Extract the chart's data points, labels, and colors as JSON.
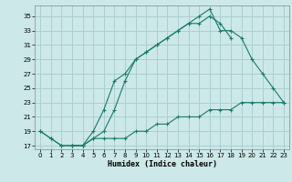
{
  "xlabel": "Humidex (Indice chaleur)",
  "bg_color": "#cce8e8",
  "grid_color": "#aacfcf",
  "line_color": "#1a7a6a",
  "xlim": [
    -0.5,
    23.5
  ],
  "ylim": [
    16.5,
    36.5
  ],
  "xticks": [
    0,
    1,
    2,
    3,
    4,
    5,
    6,
    7,
    8,
    9,
    10,
    11,
    12,
    13,
    14,
    15,
    16,
    17,
    18,
    19,
    20,
    21,
    22,
    23
  ],
  "yticks": [
    17,
    19,
    21,
    23,
    25,
    27,
    29,
    31,
    33,
    35
  ],
  "line1_x": [
    0,
    1,
    2,
    3,
    4,
    5,
    6,
    7,
    8,
    9,
    10,
    11,
    12,
    13,
    14,
    15,
    16,
    17,
    18
  ],
  "line1_y": [
    19,
    18,
    17,
    17,
    17,
    19,
    22,
    26,
    27,
    29,
    30,
    31,
    32,
    33,
    34,
    34,
    35,
    34,
    32
  ],
  "line2_x": [
    0,
    1,
    2,
    3,
    4,
    5,
    6,
    7,
    8,
    9,
    10,
    11,
    12,
    13,
    14,
    15,
    16,
    17,
    18,
    19,
    20,
    21,
    22,
    23
  ],
  "line2_y": [
    19,
    18,
    17,
    17,
    17,
    18,
    18,
    18,
    18,
    19,
    19,
    20,
    20,
    21,
    21,
    21,
    22,
    22,
    22,
    23,
    23,
    23,
    23,
    23
  ],
  "line3_x": [
    3,
    4,
    5,
    6,
    7,
    8,
    9,
    10,
    11,
    12,
    13,
    14,
    15,
    16,
    17,
    18,
    19,
    20,
    21,
    22,
    23
  ],
  "line3_y": [
    17,
    17,
    18,
    19,
    22,
    26,
    29,
    30,
    31,
    32,
    33,
    34,
    35,
    36,
    33,
    33,
    32,
    29,
    27,
    25,
    23
  ]
}
